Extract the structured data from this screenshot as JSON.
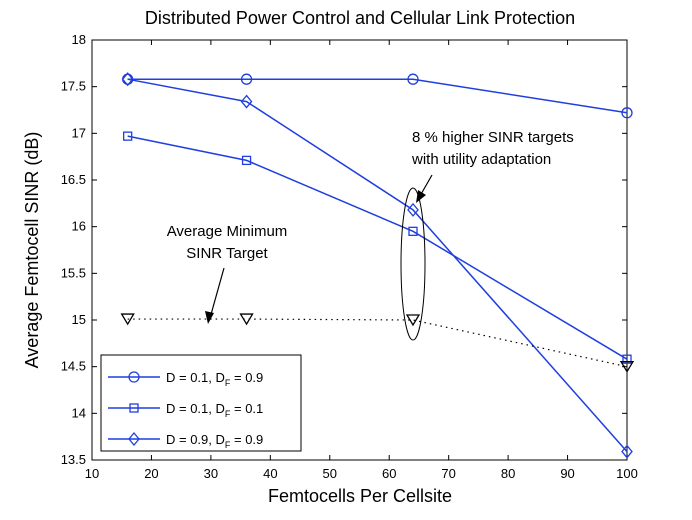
{
  "chart_data": {
    "type": "line",
    "title": "Distributed Power Control and Cellular Link Protection",
    "xlabel": "Femtocells Per Cellsite",
    "ylabel": "Average Femtocell SINR (dB)",
    "xlim": [
      10,
      100
    ],
    "ylim": [
      13.5,
      18
    ],
    "x_ticks": [
      "10",
      "20",
      "30",
      "40",
      "50",
      "60",
      "70",
      "80",
      "90",
      "100"
    ],
    "y_ticks": [
      "13.5",
      "14",
      "14.5",
      "15",
      "15.5",
      "16",
      "16.5",
      "17",
      "17.5",
      "18"
    ],
    "x_tick_values": [
      10,
      20,
      30,
      40,
      50,
      60,
      70,
      80,
      90,
      100
    ],
    "y_tick_values": [
      13.5,
      14,
      14.5,
      15,
      15.5,
      16,
      16.5,
      17,
      17.5,
      18
    ],
    "grid": false,
    "legend_position": "bottom-left",
    "series": [
      {
        "name": "D = 0.1, D_F = 0.9",
        "legend_main": "D = 0.1, D",
        "legend_sub": "F",
        "legend_tail": " = 0.9",
        "marker": "circle",
        "color": "#1f3fdf",
        "style": "solid",
        "x": [
          16,
          36,
          64,
          100
        ],
        "y": [
          17.58,
          17.58,
          17.58,
          17.22
        ]
      },
      {
        "name": "D = 0.1, D_F = 0.1",
        "legend_main": "D = 0.1, D",
        "legend_sub": "F",
        "legend_tail": " = 0.1",
        "marker": "square",
        "color": "#1f3fdf",
        "style": "solid",
        "x": [
          16,
          36,
          64,
          100
        ],
        "y": [
          16.97,
          16.71,
          15.95,
          14.58
        ]
      },
      {
        "name": "D = 0.9, D_F = 0.9",
        "legend_main": "D = 0.9, D",
        "legend_sub": "F",
        "legend_tail": " = 0.9",
        "marker": "diamond",
        "color": "#1f3fdf",
        "style": "solid",
        "x": [
          16,
          36,
          64,
          100
        ],
        "y": [
          17.58,
          17.34,
          16.18,
          13.59
        ]
      },
      {
        "name": "",
        "marker": "triangle-down",
        "color": "#000000",
        "style": "dotted",
        "x": [
          16,
          36,
          64,
          100
        ],
        "y": [
          15.01,
          15.01,
          15.0,
          14.5
        ]
      }
    ],
    "annotations": [
      {
        "lines": [
          "Average Minimum",
          "SINR Target"
        ]
      },
      {
        "lines": [
          "8 % higher SINR targets",
          "with utility adaptation"
        ]
      }
    ]
  }
}
